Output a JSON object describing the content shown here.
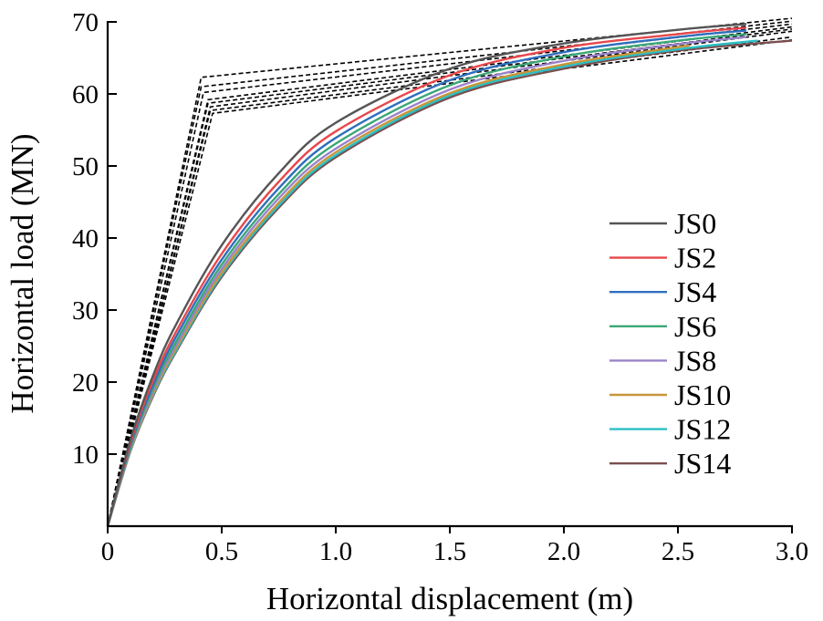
{
  "chart_data": {
    "type": "line",
    "title": "",
    "xlabel": "Horizontal displacement (m)",
    "ylabel": "Horizontal load (MN)",
    "xlim": [
      0,
      3.0
    ],
    "ylim": [
      0,
      70
    ],
    "xticks": [
      "0",
      "0.5",
      "1.0",
      "1.5",
      "2.0",
      "2.5",
      "3.0"
    ],
    "xtick_values": [
      0,
      0.5,
      1.0,
      1.5,
      2.0,
      2.5,
      3.0
    ],
    "yticks": [
      "10",
      "20",
      "30",
      "40",
      "50",
      "60",
      "70"
    ],
    "ytick_values": [
      10,
      20,
      30,
      40,
      50,
      60,
      70
    ],
    "grid": false,
    "legend_position": "right",
    "series": [
      {
        "name": "JS0",
        "color": "#555555",
        "x": [
          0,
          0.1,
          0.2,
          0.3,
          0.5,
          0.75,
          1.0,
          1.5,
          2.0,
          2.5,
          2.8
        ],
        "values": [
          0,
          12,
          21,
          28,
          39,
          49,
          56,
          63.5,
          67,
          68.9,
          69.7
        ]
      },
      {
        "name": "JS2",
        "color": "#e8474b",
        "x": [
          0,
          0.1,
          0.2,
          0.3,
          0.5,
          0.75,
          1.0,
          1.5,
          2.0,
          2.5,
          2.8
        ],
        "values": [
          0,
          11.6,
          20.3,
          27,
          37.8,
          47.8,
          54.8,
          62.6,
          66.4,
          68.3,
          69.2
        ]
      },
      {
        "name": "JS4",
        "color": "#2e6fbd",
        "x": [
          0,
          0.1,
          0.2,
          0.3,
          0.5,
          0.75,
          1.0,
          1.5,
          2.0,
          2.5,
          2.8
        ],
        "values": [
          0,
          11.3,
          19.7,
          26.3,
          37,
          46.9,
          53.9,
          61.9,
          65.8,
          67.9,
          68.8
        ]
      },
      {
        "name": "JS6",
        "color": "#3aa776",
        "x": [
          0,
          0.1,
          0.2,
          0.3,
          0.5,
          0.75,
          1.0,
          1.5,
          2.0,
          2.5,
          2.8
        ],
        "values": [
          0,
          11,
          19.2,
          25.6,
          36.3,
          46.1,
          53.1,
          61.2,
          65.2,
          67.4,
          68.3
        ]
      },
      {
        "name": "JS8",
        "color": "#9a82c9",
        "x": [
          0,
          0.1,
          0.2,
          0.3,
          0.5,
          0.75,
          1.0,
          1.5,
          2.0,
          2.5,
          2.8
        ],
        "values": [
          0,
          10.8,
          18.8,
          25.1,
          35.7,
          45.5,
          52.4,
          60.6,
          64.6,
          66.9,
          67.9
        ]
      },
      {
        "name": "JS10",
        "color": "#c7963a",
        "x": [
          0,
          0.1,
          0.2,
          0.3,
          0.5,
          0.75,
          1.0,
          1.5,
          2.0,
          2.5,
          2.53
        ],
        "values": [
          0,
          10.6,
          18.5,
          24.7,
          35.2,
          44.9,
          51.9,
          60.1,
          64.1,
          66.5,
          66.6
        ]
      },
      {
        "name": "JS12",
        "color": "#2abfc4",
        "x": [
          0,
          0.1,
          0.2,
          0.3,
          0.5,
          0.75,
          1.0,
          1.5,
          2.0,
          2.5,
          2.85
        ],
        "values": [
          0,
          10.5,
          18.3,
          24.4,
          34.9,
          44.5,
          51.5,
          59.8,
          63.8,
          66.2,
          67.4
        ]
      },
      {
        "name": "JS14",
        "color": "#7a4f4f",
        "x": [
          0,
          0.1,
          0.2,
          0.3,
          0.5,
          0.75,
          1.0,
          1.5,
          2.0,
          2.5,
          3.0
        ],
        "values": [
          0,
          10.4,
          18.1,
          24.2,
          34.6,
          44.2,
          51.2,
          59.5,
          63.5,
          66,
          67.4
        ]
      }
    ],
    "bilinear_fits": [
      {
        "x": [
          0,
          0.41,
          3.0
        ],
        "values": [
          0,
          62.3,
          70.5
        ]
      },
      {
        "x": [
          0,
          0.41,
          3.0
        ],
        "values": [
          0,
          61,
          70.1
        ]
      },
      {
        "x": [
          0,
          0.42,
          3.0
        ],
        "values": [
          0,
          60.2,
          69.7
        ]
      },
      {
        "x": [
          0,
          0.44,
          3.0
        ],
        "values": [
          0,
          59.2,
          69.3
        ]
      },
      {
        "x": [
          0,
          0.44,
          3.0
        ],
        "values": [
          0,
          58.7,
          69
        ]
      },
      {
        "x": [
          0,
          0.45,
          3.0
        ],
        "values": [
          0,
          58.2,
          68.7
        ]
      },
      {
        "x": [
          0,
          0.45,
          3.0
        ],
        "values": [
          0,
          57.7,
          67.9
        ]
      },
      {
        "x": [
          0,
          0.46,
          3.0
        ],
        "values": [
          0,
          57.3,
          67.5
        ]
      }
    ]
  }
}
